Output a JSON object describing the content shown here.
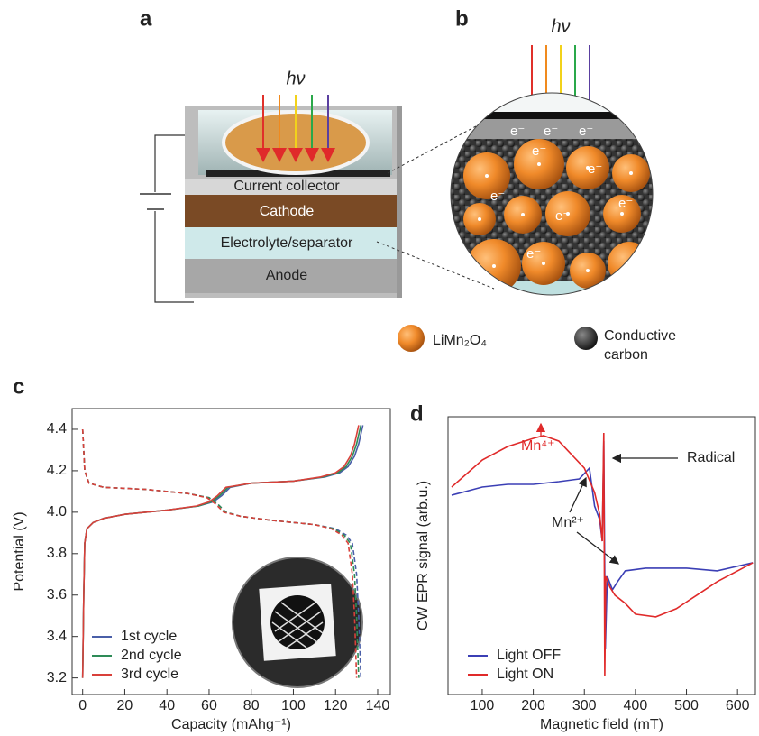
{
  "panels": {
    "a": {
      "label": "a",
      "light": "hν",
      "layers": [
        "Current collector",
        "Cathode",
        "Electrolyte/separator",
        "Anode"
      ]
    },
    "b": {
      "label": "b",
      "light": "hν",
      "electrons": [
        "e⁻",
        "e⁻",
        "e⁻",
        "e⁻",
        "e⁻",
        "e⁻",
        "e⁻",
        "e⁻",
        "e⁻"
      ],
      "legend": [
        "LiMn₂O₄",
        "Conductive",
        "carbon"
      ]
    }
  },
  "chart_data": [
    {
      "type": "line",
      "panel": "c",
      "xlabel": "Capacity (mAhg⁻¹)",
      "ylabel": "Potential (V)",
      "xlim": [
        -5,
        146
      ],
      "ylim": [
        3.12,
        4.5
      ],
      "xticks": [
        0,
        20,
        40,
        60,
        80,
        100,
        120,
        140
      ],
      "yticks": [
        3.2,
        3.4,
        3.6,
        3.8,
        {
          "value": 4,
          "label": "4.0"
        },
        4.2,
        4.4
      ],
      "legend": "lower left",
      "series": [
        {
          "name": "1st cycle",
          "color": "#4a5fa8",
          "charge": {
            "x": [
              0,
              0.5,
              1,
              2,
              5,
              10,
              20,
              40,
              55,
              62,
              66,
              70,
              80,
              100,
              115,
              122,
              126,
              129,
              131,
              133
            ],
            "values": [
              3.2,
              3.6,
              3.85,
              3.92,
              3.95,
              3.97,
              3.99,
              4.01,
              4.03,
              4.05,
              4.08,
              4.12,
              4.14,
              4.15,
              4.17,
              4.19,
              4.22,
              4.27,
              4.33,
              4.42
            ],
            "line_style": "solid"
          },
          "discharge": {
            "x": [
              0,
              1,
              3,
              10,
              30,
              50,
              60,
              64,
              68,
              75,
              90,
              110,
              120,
              125,
              128,
              130,
              131,
              132
            ],
            "values": [
              4.4,
              4.2,
              4.14,
              4.12,
              4.11,
              4.09,
              4.07,
              4.04,
              4.0,
              3.98,
              3.96,
              3.94,
              3.92,
              3.89,
              3.85,
              3.7,
              3.5,
              3.2
            ],
            "line_style": "dashed"
          }
        },
        {
          "name": "2nd cycle",
          "color": "#2e8b57",
          "charge": {
            "x": [
              0,
              0.5,
              1,
              2,
              5,
              10,
              20,
              40,
              55,
              61,
              65,
              69,
              80,
              100,
              114,
              121,
              125,
              128,
              130,
              132
            ],
            "values": [
              3.2,
              3.6,
              3.85,
              3.92,
              3.95,
              3.97,
              3.99,
              4.01,
              4.03,
              4.05,
              4.08,
              4.12,
              4.14,
              4.15,
              4.17,
              4.19,
              4.22,
              4.27,
              4.33,
              4.42
            ],
            "line_style": "solid"
          },
          "discharge": {
            "x": [
              0,
              1,
              3,
              10,
              30,
              50,
              60,
              64,
              68,
              75,
              90,
              110,
              119,
              124,
              127,
              129,
              130,
              131
            ],
            "values": [
              4.4,
              4.2,
              4.14,
              4.12,
              4.11,
              4.09,
              4.07,
              4.04,
              4.0,
              3.98,
              3.96,
              3.94,
              3.92,
              3.89,
              3.85,
              3.7,
              3.5,
              3.2
            ],
            "line_style": "dashed"
          }
        },
        {
          "name": "3rd cycle",
          "color": "#d9403a",
          "charge": {
            "x": [
              0,
              0.5,
              1,
              2,
              5,
              10,
              20,
              40,
              54,
              60,
              64,
              68,
              80,
              100,
              113,
              120,
              124,
              127,
              129,
              131
            ],
            "values": [
              3.2,
              3.6,
              3.85,
              3.92,
              3.95,
              3.97,
              3.99,
              4.01,
              4.03,
              4.05,
              4.08,
              4.12,
              4.14,
              4.15,
              4.17,
              4.19,
              4.22,
              4.27,
              4.33,
              4.42
            ],
            "line_style": "solid"
          },
          "discharge": {
            "x": [
              0,
              1,
              3,
              10,
              30,
              50,
              59,
              63,
              67,
              75,
              90,
              110,
              118,
              123,
              126,
              128,
              129,
              130
            ],
            "values": [
              4.4,
              4.2,
              4.14,
              4.12,
              4.11,
              4.09,
              4.07,
              4.04,
              4.0,
              3.98,
              3.96,
              3.94,
              3.92,
              3.89,
              3.85,
              3.7,
              3.5,
              3.2
            ],
            "line_style": "dashed"
          }
        }
      ]
    },
    {
      "type": "line",
      "panel": "d",
      "xlabel": "Magnetic field (mT)",
      "ylabel": "CW EPR signal (arb.u.)",
      "xlim": [
        33,
        635
      ],
      "ylim": [
        -1.7,
        101
      ],
      "xticks": [
        100,
        200,
        300,
        400,
        500,
        600
      ],
      "legend": "lower left",
      "annotations": [
        "Mn⁴⁺",
        "Radical",
        "Mn²⁺"
      ],
      "series": [
        {
          "name": "Light OFF",
          "color": "#3b3fb5",
          "x": [
            40,
            100,
            150,
            200,
            250,
            290,
            310,
            320,
            330,
            335,
            338,
            341,
            345,
            355,
            365,
            380,
            420,
            500,
            560,
            630
          ],
          "values": [
            72,
            75,
            76,
            76,
            77,
            78,
            82,
            68,
            63,
            55,
            92,
            15,
            42,
            37,
            40,
            44,
            45,
            45,
            44,
            47
          ]
        },
        {
          "name": "Light ON",
          "color": "#e02a2a",
          "x": [
            40,
            100,
            150,
            200,
            220,
            250,
            280,
            300,
            320,
            330,
            335,
            338,
            340,
            342,
            350,
            360,
            380,
            400,
            440,
            480,
            520,
            560,
            600,
            630
          ],
          "values": [
            75,
            85,
            90,
            93,
            94,
            92,
            86,
            82,
            73,
            65,
            55,
            95,
            5,
            42,
            38,
            35,
            32,
            28,
            27,
            30,
            35,
            40,
            44,
            47
          ]
        }
      ]
    }
  ]
}
